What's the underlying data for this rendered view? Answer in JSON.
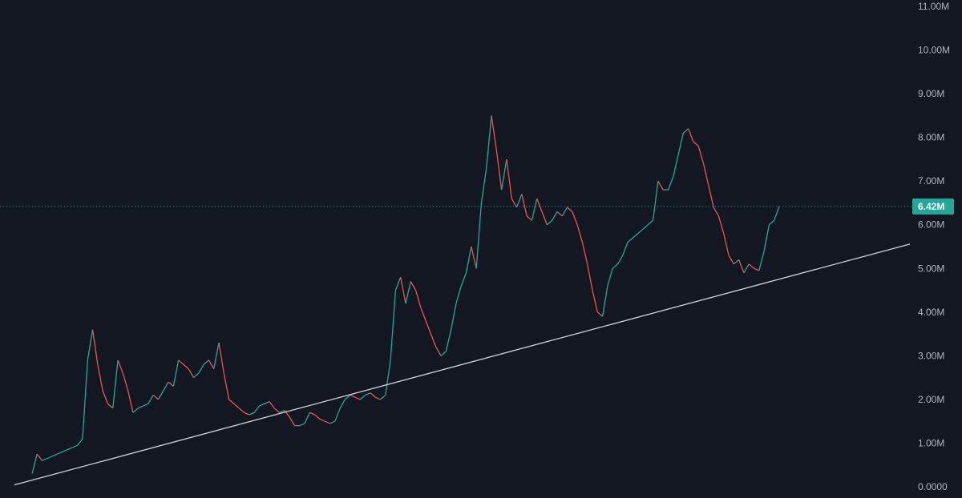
{
  "chart_data": {
    "type": "line",
    "title": "",
    "xlabel": "",
    "ylabel": "",
    "ylim": [
      0,
      11000000
    ],
    "grid": false,
    "y_tick_labels": [
      "0.0000",
      "1.00M",
      "2.00M",
      "3.00M",
      "4.00M",
      "5.00M",
      "6.00M",
      "7.00M",
      "8.00M",
      "9.00M",
      "10.00M",
      "11.00M"
    ],
    "y_ticks": [
      0,
      1000000,
      2000000,
      3000000,
      4000000,
      5000000,
      6000000,
      7000000,
      8000000,
      9000000,
      10000000,
      11000000
    ],
    "last_price_label": "6.42M",
    "last_price": 6420000,
    "colors": {
      "background": "#131722",
      "up": "#26a69a",
      "down": "#ef5350",
      "trendline": "#d1d4dc",
      "price_line": "#26a69a",
      "axis_text": "#b2b5be"
    },
    "series": [
      {
        "values": [
          300000,
          750000,
          600000,
          650000,
          700000,
          750000,
          800000,
          850000,
          900000,
          950000,
          1100000,
          2900000,
          3600000,
          2800000,
          2200000,
          1900000,
          1800000,
          2900000,
          2600000,
          2200000,
          1700000,
          1800000,
          1850000,
          1900000,
          2100000,
          2000000,
          2200000,
          2400000,
          2300000,
          2900000,
          2800000,
          2700000,
          2500000,
          2600000,
          2800000,
          2900000,
          2700000,
          3300000,
          2600000,
          2000000,
          1900000,
          1800000,
          1700000,
          1650000,
          1700000,
          1850000,
          1900000,
          1950000,
          1800000,
          1700000,
          1750000,
          1600000,
          1400000,
          1400000,
          1450000,
          1700000,
          1650000,
          1550000,
          1500000,
          1450000,
          1500000,
          1800000,
          2000000,
          2100000,
          2050000,
          2000000,
          2100000,
          2150000,
          2050000,
          2000000,
          2100000,
          2900000,
          4500000,
          4800000,
          4200000,
          4700000,
          4500000,
          4100000,
          3800000,
          3500000,
          3200000,
          3000000,
          3100000,
          3600000,
          4200000,
          4600000,
          4900000,
          5500000,
          5000000,
          6500000,
          7300000,
          8500000,
          7700000,
          6800000,
          7500000,
          6600000,
          6400000,
          6700000,
          6200000,
          6100000,
          6600000,
          6300000,
          6000000,
          6100000,
          6300000,
          6200000,
          6400000,
          6300000,
          6000000,
          5600000,
          5100000,
          4500000,
          4000000,
          3900000,
          4600000,
          5000000,
          5100000,
          5300000,
          5600000,
          5700000,
          5800000,
          5900000,
          6000000,
          6100000,
          7000000,
          6800000,
          6800000,
          7100000,
          7600000,
          8100000,
          8200000,
          7900000,
          7800000,
          7400000,
          6900000,
          6400000,
          6200000,
          5800000,
          5300000,
          5100000,
          5200000,
          4900000,
          5100000,
          5000000,
          4950000,
          5400000,
          6000000,
          6100000,
          6420000
        ]
      }
    ],
    "trendline": {
      "start": [
        0,
        300000
      ],
      "end": [
        148,
        5650000
      ]
    }
  }
}
